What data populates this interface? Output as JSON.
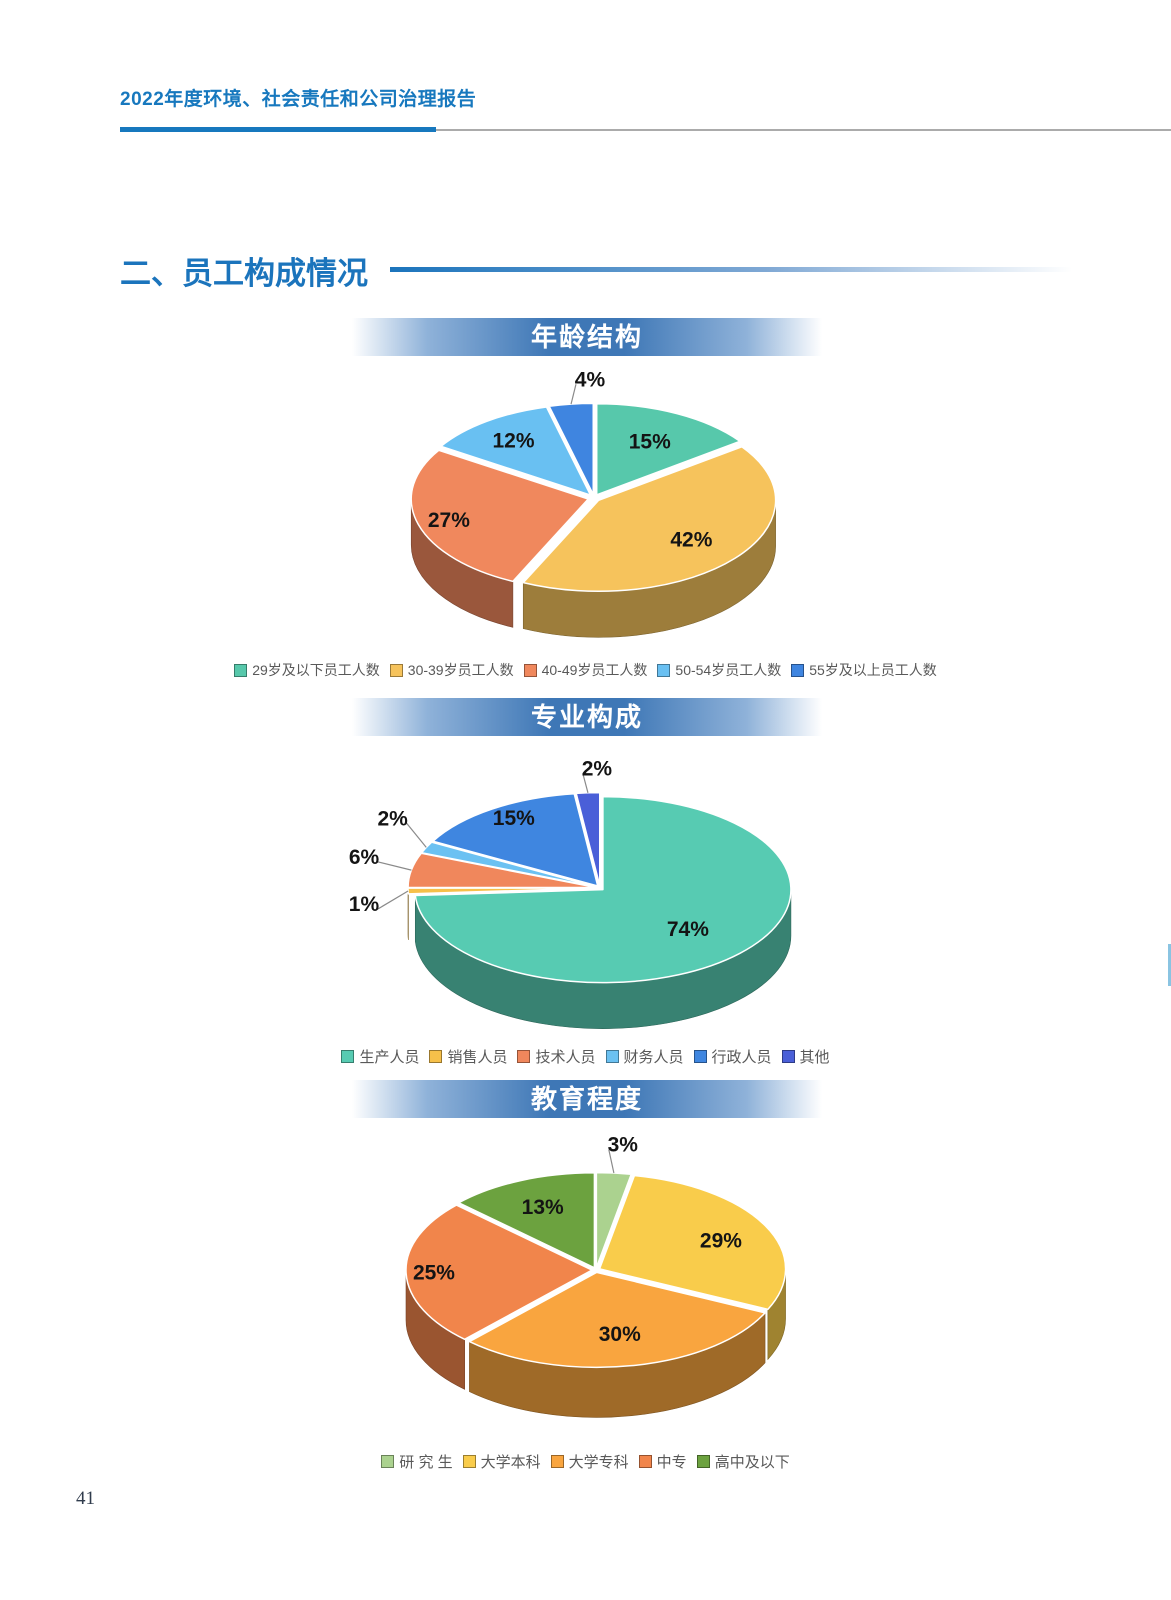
{
  "header": {
    "title": "2022年度环境、社会责任和公司治理报告"
  },
  "section": {
    "title": "二、员工构成情况"
  },
  "chart_data": [
    {
      "type": "pie",
      "title": "年龄结构",
      "labels": [
        "29岁及以下员工人数",
        "30-39岁员工人数",
        "40-49岁员工人数",
        "50-54岁员工人数",
        "55岁及以上员工人数"
      ],
      "values": [
        15,
        42,
        27,
        12,
        4
      ],
      "unit": "%",
      "colors": [
        "#57C8AB",
        "#F6C35C",
        "#F0885D",
        "#69C0F2",
        "#3F85E0"
      ],
      "legend_position": "bottom",
      "style": "3d-exploded"
    },
    {
      "type": "pie",
      "title": "专业构成",
      "labels": [
        "生产人员",
        "销售人员",
        "技术人员",
        "财务人员",
        "行政人员",
        "其他"
      ],
      "values": [
        74,
        1,
        6,
        2,
        15,
        2
      ],
      "unit": "%",
      "colors": [
        "#57CBB2",
        "#F6C04A",
        "#F0875C",
        "#6BC1F2",
        "#3F86E0",
        "#4A5FD8"
      ],
      "legend_position": "bottom",
      "style": "3d-exploded"
    },
    {
      "type": "pie",
      "title": "教育程度",
      "labels": [
        "研 究 生",
        "大学本科",
        "大学专科",
        "中专",
        "高中及以下"
      ],
      "values": [
        3,
        29,
        30,
        25,
        13
      ],
      "unit": "%",
      "colors": [
        "#ABD28F",
        "#F9CC4B",
        "#F9A53F",
        "#F1854B",
        "#6CA23F"
      ],
      "legend_position": "bottom",
      "style": "3d-exploded"
    }
  ],
  "page": {
    "number": "41"
  },
  "theme": {
    "header_blue": "#1778BE",
    "section_blue": "#1B74BC",
    "band_blue": "#3E77B6",
    "rule_gray": "#ABABAB",
    "legend_text": "#595959",
    "label_text": "#141414",
    "page_number_color": "#2F3B4C",
    "side_marker_blue": "#8AC4E2",
    "page_bg": "#FFFFFF"
  }
}
